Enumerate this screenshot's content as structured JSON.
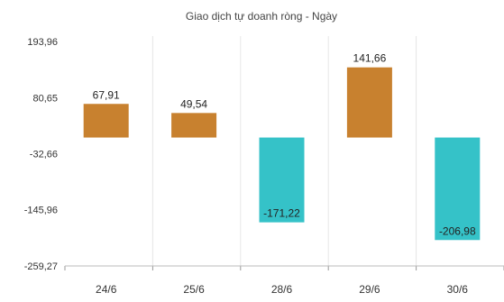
{
  "chart_data": {
    "type": "bar",
    "title": "Giao dịch tự doanh ròng - Ngày",
    "categories": [
      "24/6",
      "25/6",
      "28/6",
      "29/6",
      "30/6"
    ],
    "values": [
      67.91,
      49.54,
      -171.22,
      141.66,
      -206.98
    ],
    "value_labels": [
      "67,91",
      "49,54",
      "-171,22",
      "141,66",
      "-206,98"
    ],
    "y_ticks": [
      193.96,
      80.65,
      -32.66,
      -145.96,
      -259.27
    ],
    "y_tick_labels": [
      "193,96",
      "80,65",
      "-32,66",
      "-145,96",
      "-259,27"
    ],
    "ylim": [
      -259.27,
      193.96
    ],
    "grid": true,
    "colors": {
      "positive": "#c8812f",
      "negative": "#35c2c8"
    }
  }
}
